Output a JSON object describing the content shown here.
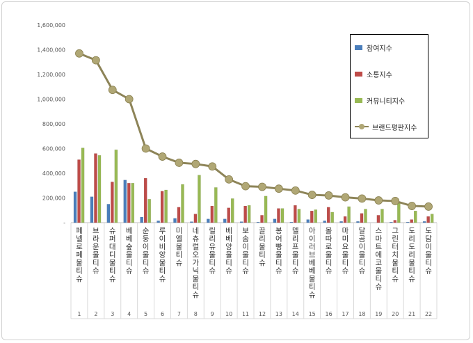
{
  "chart_data": {
    "type": "bar",
    "categories": [
      "페넬로페물티슈",
      "브라운물티슈",
      "슈퍼대디물티슈",
      "베베숲물티슈",
      "순둥이물티슈",
      "루이비앙물티슈",
      "미엘물티슈",
      "네츄럴오가닉물티슈",
      "릴리유물티슈",
      "베베앙물티슈",
      "보솜이물티슈",
      "끌리물티슈",
      "봉어빵물티슈",
      "델리프물티슈",
      "아이러브베베물티슈",
      "몰따로물티슈",
      "마미요물티슈",
      "달곰이물티슈",
      "스마트에코물티슈",
      "그린터치물티슈",
      "도리도리물티슈",
      "도담이물티슈"
    ],
    "index_labels": [
      "1",
      "2",
      "3",
      "4",
      "5",
      "6",
      "7",
      "8",
      "9",
      "10",
      "11",
      "12",
      "13",
      "14",
      "15",
      "16",
      "17",
      "18",
      "19",
      "20",
      "21",
      "22"
    ],
    "series": [
      {
        "name": "참여지수",
        "kind": "bar",
        "color": "#4a7ebb",
        "values": [
          250000,
          210000,
          150000,
          345000,
          45000,
          15000,
          35000,
          8000,
          30000,
          30000,
          8000,
          5000,
          30000,
          5000,
          25000,
          15000,
          10000,
          10000,
          0,
          5000,
          5000,
          10000
        ]
      },
      {
        "name": "소통지수",
        "kind": "bar",
        "color": "#be4b48",
        "values": [
          510000,
          560000,
          330000,
          320000,
          360000,
          255000,
          125000,
          70000,
          135000,
          120000,
          135000,
          60000,
          115000,
          140000,
          95000,
          125000,
          50000,
          75000,
          60000,
          20000,
          25000,
          50000
        ]
      },
      {
        "name": "커뮤니티지수",
        "kind": "bar",
        "color": "#98b954",
        "values": [
          605000,
          545000,
          590000,
          320000,
          190000,
          265000,
          310000,
          385000,
          285000,
          195000,
          140000,
          215000,
          115000,
          110000,
          105000,
          85000,
          130000,
          110000,
          110000,
          165000,
          95000,
          70000
        ]
      },
      {
        "name": "브랜드평판지수",
        "kind": "line",
        "color": "#8d8458",
        "values": [
          1370000,
          1315000,
          1075000,
          1000000,
          600000,
          535000,
          485000,
          475000,
          455000,
          350000,
          295000,
          290000,
          275000,
          260000,
          225000,
          220000,
          205000,
          195000,
          180000,
          175000,
          135000,
          130000
        ]
      }
    ],
    "y_ticks": [
      "-",
      "200,000",
      "400,000",
      "600,000",
      "800,000",
      "1,000,000",
      "1,200,000",
      "1,400,000",
      "1,600,000"
    ],
    "ylim": [
      0,
      1600000
    ],
    "grid": false,
    "legend_position": "top-right"
  }
}
